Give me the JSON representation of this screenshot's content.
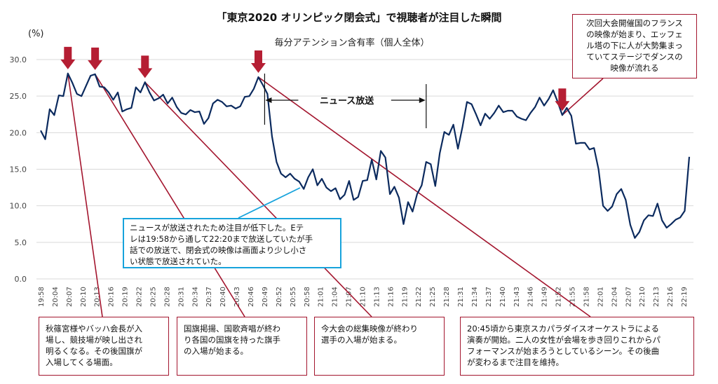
{
  "chart_data": {
    "type": "line",
    "title": "「東京2020 オリンピック閉会式」で視聴者が注目した瞬間",
    "subtitle": "毎分アテンション含有率（個人全体）",
    "ylabel": "(%)",
    "ylim": [
      0,
      30
    ],
    "yticks": [
      "0.0",
      "5.0",
      "10.0",
      "15.0",
      "20.0",
      "25.0",
      "30.0"
    ],
    "grid": true,
    "xtick_labels": [
      "19:58",
      "20:04",
      "20:07",
      "20:10",
      "20:13",
      "20:16",
      "20:19",
      "20:22",
      "20:25",
      "20:28",
      "20:31",
      "20:34",
      "20:37",
      "20:40",
      "20:43",
      "20:46",
      "20:49",
      "20:52",
      "20:55",
      "20:58",
      "21:01",
      "21:04",
      "21:07",
      "21:10",
      "21:13",
      "21:16",
      "21:19",
      "21:22",
      "21:25",
      "21:28",
      "21:31",
      "21:34",
      "21:37",
      "21:40",
      "21:43",
      "21:46",
      "21:49",
      "21:52",
      "21:55",
      "21:58",
      "22:01",
      "22:04",
      "22:07",
      "22:10",
      "22:13",
      "22:16",
      "22:19"
    ],
    "values": [
      20.3,
      19.1,
      23.2,
      22.4,
      25.1,
      25.0,
      28.1,
      26.8,
      25.3,
      25.0,
      26.4,
      27.8,
      28.0,
      26.3,
      26.2,
      25.5,
      24.5,
      25.5,
      22.9,
      23.2,
      23.4,
      26.2,
      25.5,
      26.9,
      25.5,
      24.4,
      24.7,
      25.2,
      24.0,
      24.8,
      23.5,
      22.7,
      22.5,
      23.1,
      22.8,
      22.9,
      21.2,
      22.0,
      24.0,
      24.5,
      24.2,
      23.6,
      23.7,
      23.3,
      23.6,
      24.9,
      25.0,
      26.0,
      27.6,
      26.5,
      25.3,
      19.5,
      16.0,
      14.4,
      13.9,
      14.4,
      13.7,
      13.3,
      12.3,
      13.9,
      15.0,
      12.8,
      13.7,
      12.5,
      12.0,
      12.4,
      10.9,
      11.5,
      13.4,
      10.8,
      11.2,
      13.4,
      13.5,
      16.3,
      13.6,
      17.5,
      16.6,
      11.6,
      12.6,
      11.1,
      7.5,
      10.5,
      9.2,
      11.6,
      12.8,
      16.0,
      15.7,
      12.7,
      17.2,
      20.1,
      19.7,
      21.1,
      17.8,
      20.8,
      24.2,
      23.9,
      22.5,
      21.0,
      22.6,
      21.9,
      22.7,
      23.7,
      22.8,
      23.0,
      23.0,
      22.2,
      21.9,
      21.7,
      22.7,
      23.5,
      24.8,
      23.7,
      24.6,
      25.8,
      24.2,
      22.4,
      23.4,
      22.3,
      18.5,
      18.6,
      18.6,
      17.7,
      17.9,
      15.0,
      10.0,
      9.3,
      9.9,
      11.6,
      12.3,
      10.8,
      7.4,
      5.6,
      6.4,
      8.0,
      8.7,
      8.6,
      10.3,
      8.0,
      7.0,
      7.5,
      8.1,
      8.4,
      9.3,
      16.7
    ],
    "arrow_indices": [
      6,
      12,
      23,
      48,
      115
    ],
    "news_segment": {
      "label": "ニュース放送",
      "start_index": 50,
      "end_index": 85
    }
  },
  "annotations": [
    {
      "id": "ann1",
      "text": "秋篠宮様やバッハ会長が入\n場し、競技場が映し出され\n明るくなる。その後国旗が\n入場してくる場面。"
    },
    {
      "id": "ann2",
      "text": "国旗掲揚、国歌斉唱が終わ\nり各国の国旗を持った旗手\nの入場が始まる。"
    },
    {
      "id": "ann3",
      "text": "今大会の総集映像が終わり\n選手の入場が始まる。"
    },
    {
      "id": "ann4",
      "text": "20:45頃から東京スカパラダイスオーケストラによる\n演奏が開始。二人の女性が会場を歩き回りこれからパ\nフォーマンスが始まろうとしているシーン。その後曲\nが変わるまで注目を維持。"
    },
    {
      "id": "ann5",
      "text": "次回大会開催国のフランス\nの映像が始まり、エッフェ\nル塔の下に人が大勢集まっ\nていてステージでダンスの\n映像が流れる"
    },
    {
      "id": "ann6",
      "text": "ニュースが放送されたため注目が低下した。Eテ\nレは19:58から通して22:20まで放送していたが手\n話での放送で、閉会式の映像は画面より少し小さ\nい状態で放送されていた。"
    }
  ],
  "colors": {
    "series": "#0b2a5e",
    "leader": "#a3152e",
    "arrow": "#b51e33",
    "callout_blue": "#17a3dc"
  }
}
